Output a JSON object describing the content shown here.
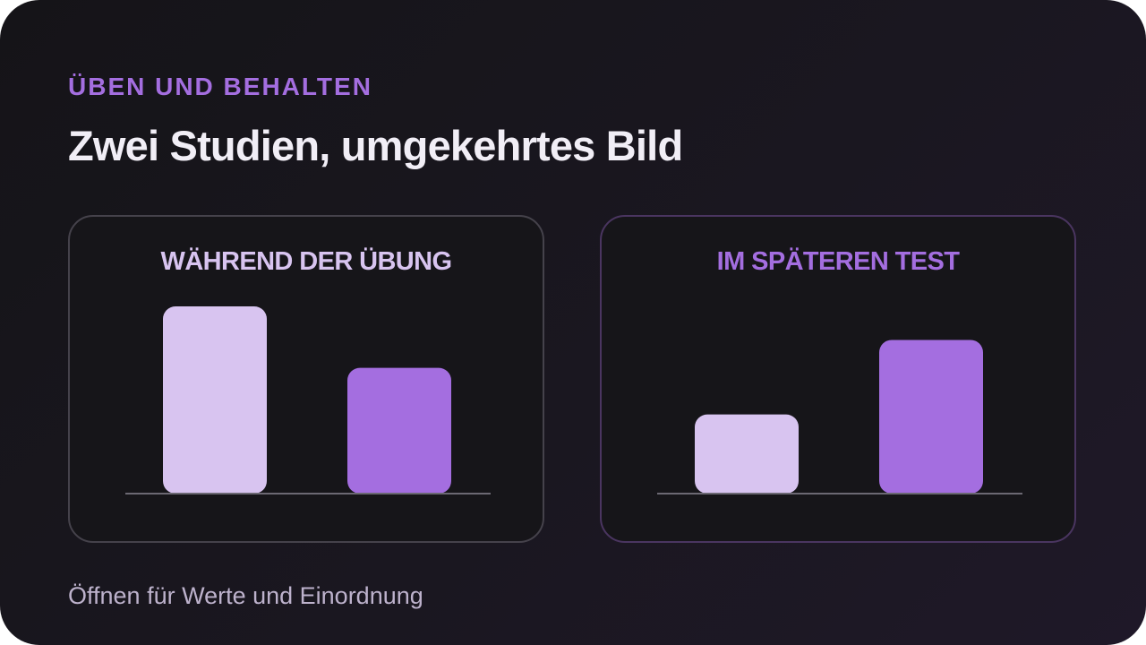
{
  "header": {
    "eyebrow": "ÜBEN UND BEHALTEN",
    "title": "Zwei Studien, umgekehrtes Bild"
  },
  "footer": {
    "hint": "Öffnen für Werte und Einordnung"
  },
  "colors": {
    "bar_first": "#d8c4f0",
    "bar_second": "#a46ee0",
    "baseline": "#6b6872"
  },
  "chart_data": [
    {
      "type": "bar",
      "title": "WÄHREND DER ÜBUNG",
      "categories": [
        "",
        ""
      ],
      "values": [
        1.0,
        0.67
      ],
      "ylim": [
        0,
        1
      ],
      "grid": false,
      "legend": "none"
    },
    {
      "type": "bar",
      "title": "IM SPÄTEREN TEST",
      "categories": [
        "",
        ""
      ],
      "values": [
        0.42,
        0.82
      ],
      "ylim": [
        0,
        1
      ],
      "grid": false,
      "legend": "none"
    }
  ]
}
